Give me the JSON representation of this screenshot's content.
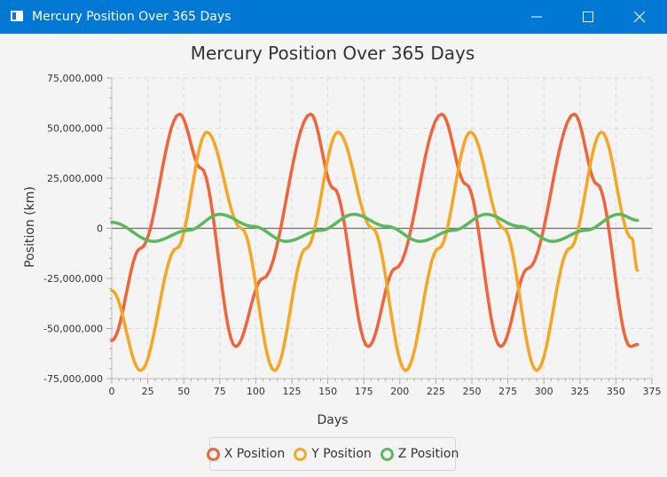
{
  "window": {
    "title": "Mercury Position Over 365 Days",
    "controls": {
      "minimize": "minimize",
      "maximize": "maximize",
      "close": "close"
    }
  },
  "colors": {
    "titlebar": "#0078d4",
    "background": "#f4f4f4",
    "grid": "#dcdcdc",
    "zero_line": "#6e6e6e",
    "x_series": "#f0643c",
    "y_series": "#f5a623",
    "z_series": "#5cb85c"
  },
  "chart_data": {
    "type": "line",
    "title": "Mercury Position Over 365 Days",
    "xlabel": "Days",
    "ylabel": "Position (km)",
    "xlim": [
      0,
      375
    ],
    "ylim": [
      -75000000,
      75000000
    ],
    "x_ticks": [
      0,
      25,
      50,
      75,
      100,
      125,
      150,
      175,
      200,
      225,
      250,
      275,
      300,
      325,
      350,
      375
    ],
    "x_tick_labels": [
      "0",
      "25",
      "50",
      "75",
      "100",
      "125",
      "150",
      "175",
      "200",
      "225",
      "250",
      "275",
      "300",
      "325",
      "350",
      "375"
    ],
    "y_ticks": [
      -75000000,
      -50000000,
      -25000000,
      0,
      25000000,
      50000000,
      75000000
    ],
    "y_tick_labels": [
      "-75,000,000",
      "-50,000,000",
      "-25,000,000",
      "0",
      "25,000,000",
      "50,000,000",
      "75,000,000"
    ],
    "grid": true,
    "legend_position": "bottom",
    "series": [
      {
        "name": "X Position",
        "x": [
          0,
          20,
          47,
          62,
          86,
          105,
          138,
          154,
          178,
          197,
          229,
          246,
          270,
          289,
          321,
          337,
          360,
          365
        ],
        "values": [
          -56000000,
          -10000000,
          57000000,
          30000000,
          -59000000,
          -25000000,
          57000000,
          20000000,
          -59000000,
          -20000000,
          57000000,
          22000000,
          -59000000,
          -20000000,
          57000000,
          22000000,
          -59000000,
          -58000000
        ]
      },
      {
        "name": "Y Position",
        "x": [
          0,
          20,
          45,
          66,
          90,
          113,
          135,
          157,
          181,
          204,
          227,
          249,
          272,
          295,
          318,
          340,
          361,
          365
        ],
        "values": [
          -31000000,
          -71000000,
          -10000000,
          48000000,
          0,
          -71000000,
          -10000000,
          48000000,
          0,
          -71000000,
          -10000000,
          48000000,
          0,
          -71000000,
          -10000000,
          48000000,
          -5000000,
          -21000000
        ]
      },
      {
        "name": "Z Position",
        "x": [
          0,
          29,
          53,
          75,
          98,
          121,
          145,
          168,
          191,
          214,
          237,
          260,
          283,
          306,
          329,
          352,
          365
        ],
        "values": [
          3000000,
          -6500000,
          -1000000,
          7000000,
          1000000,
          -6500000,
          -1000000,
          7000000,
          1000000,
          -6500000,
          -1000000,
          7000000,
          1000000,
          -6500000,
          -1000000,
          7000000,
          4000000
        ]
      }
    ]
  }
}
